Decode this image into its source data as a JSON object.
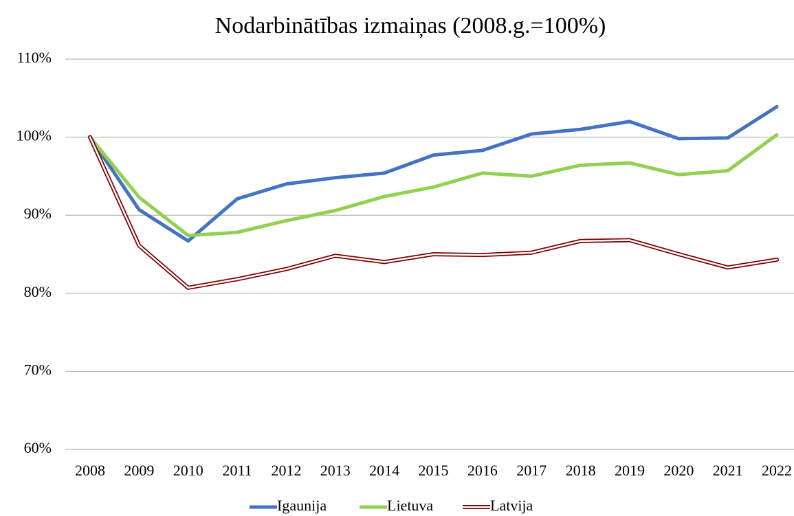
{
  "chart_data": {
    "type": "line",
    "title": "Nodarbinātības izmaiņas (2008.g.=100%)",
    "categories": [
      "2008",
      "2009",
      "2010",
      "2011",
      "2012",
      "2013",
      "2014",
      "2015",
      "2016",
      "2017",
      "2018",
      "2019",
      "2020",
      "2021",
      "2022"
    ],
    "series": [
      {
        "name": "Igaunija",
        "color": "#4472c4",
        "values": [
          100,
          90.7,
          86.7,
          92.1,
          94.0,
          94.8,
          95.4,
          97.7,
          98.3,
          100.4,
          101.0,
          102.0,
          99.8,
          99.9,
          103.9
        ]
      },
      {
        "name": "Lietuva",
        "color": "#92d050",
        "values": [
          100,
          92.3,
          87.4,
          87.8,
          89.3,
          90.6,
          92.4,
          93.6,
          95.4,
          95.0,
          96.4,
          96.7,
          95.2,
          95.7,
          100.3
        ]
      },
      {
        "name": "Latvija",
        "color": "#800000",
        "line_style": "double",
        "values": [
          100,
          86.1,
          80.7,
          81.8,
          83.1,
          84.8,
          84.0,
          85.0,
          84.9,
          85.2,
          86.7,
          86.8,
          85.0,
          83.3,
          84.3
        ]
      }
    ],
    "ylim": [
      60,
      110
    ],
    "yticks": [
      {
        "value": 60,
        "label": "60%"
      },
      {
        "value": 70,
        "label": "70%"
      },
      {
        "value": 80,
        "label": "80%"
      },
      {
        "value": 90,
        "label": "90%"
      },
      {
        "value": 100,
        "label": "100%"
      },
      {
        "value": 110,
        "label": "110%"
      }
    ],
    "grid": true,
    "legend": "bottom"
  }
}
